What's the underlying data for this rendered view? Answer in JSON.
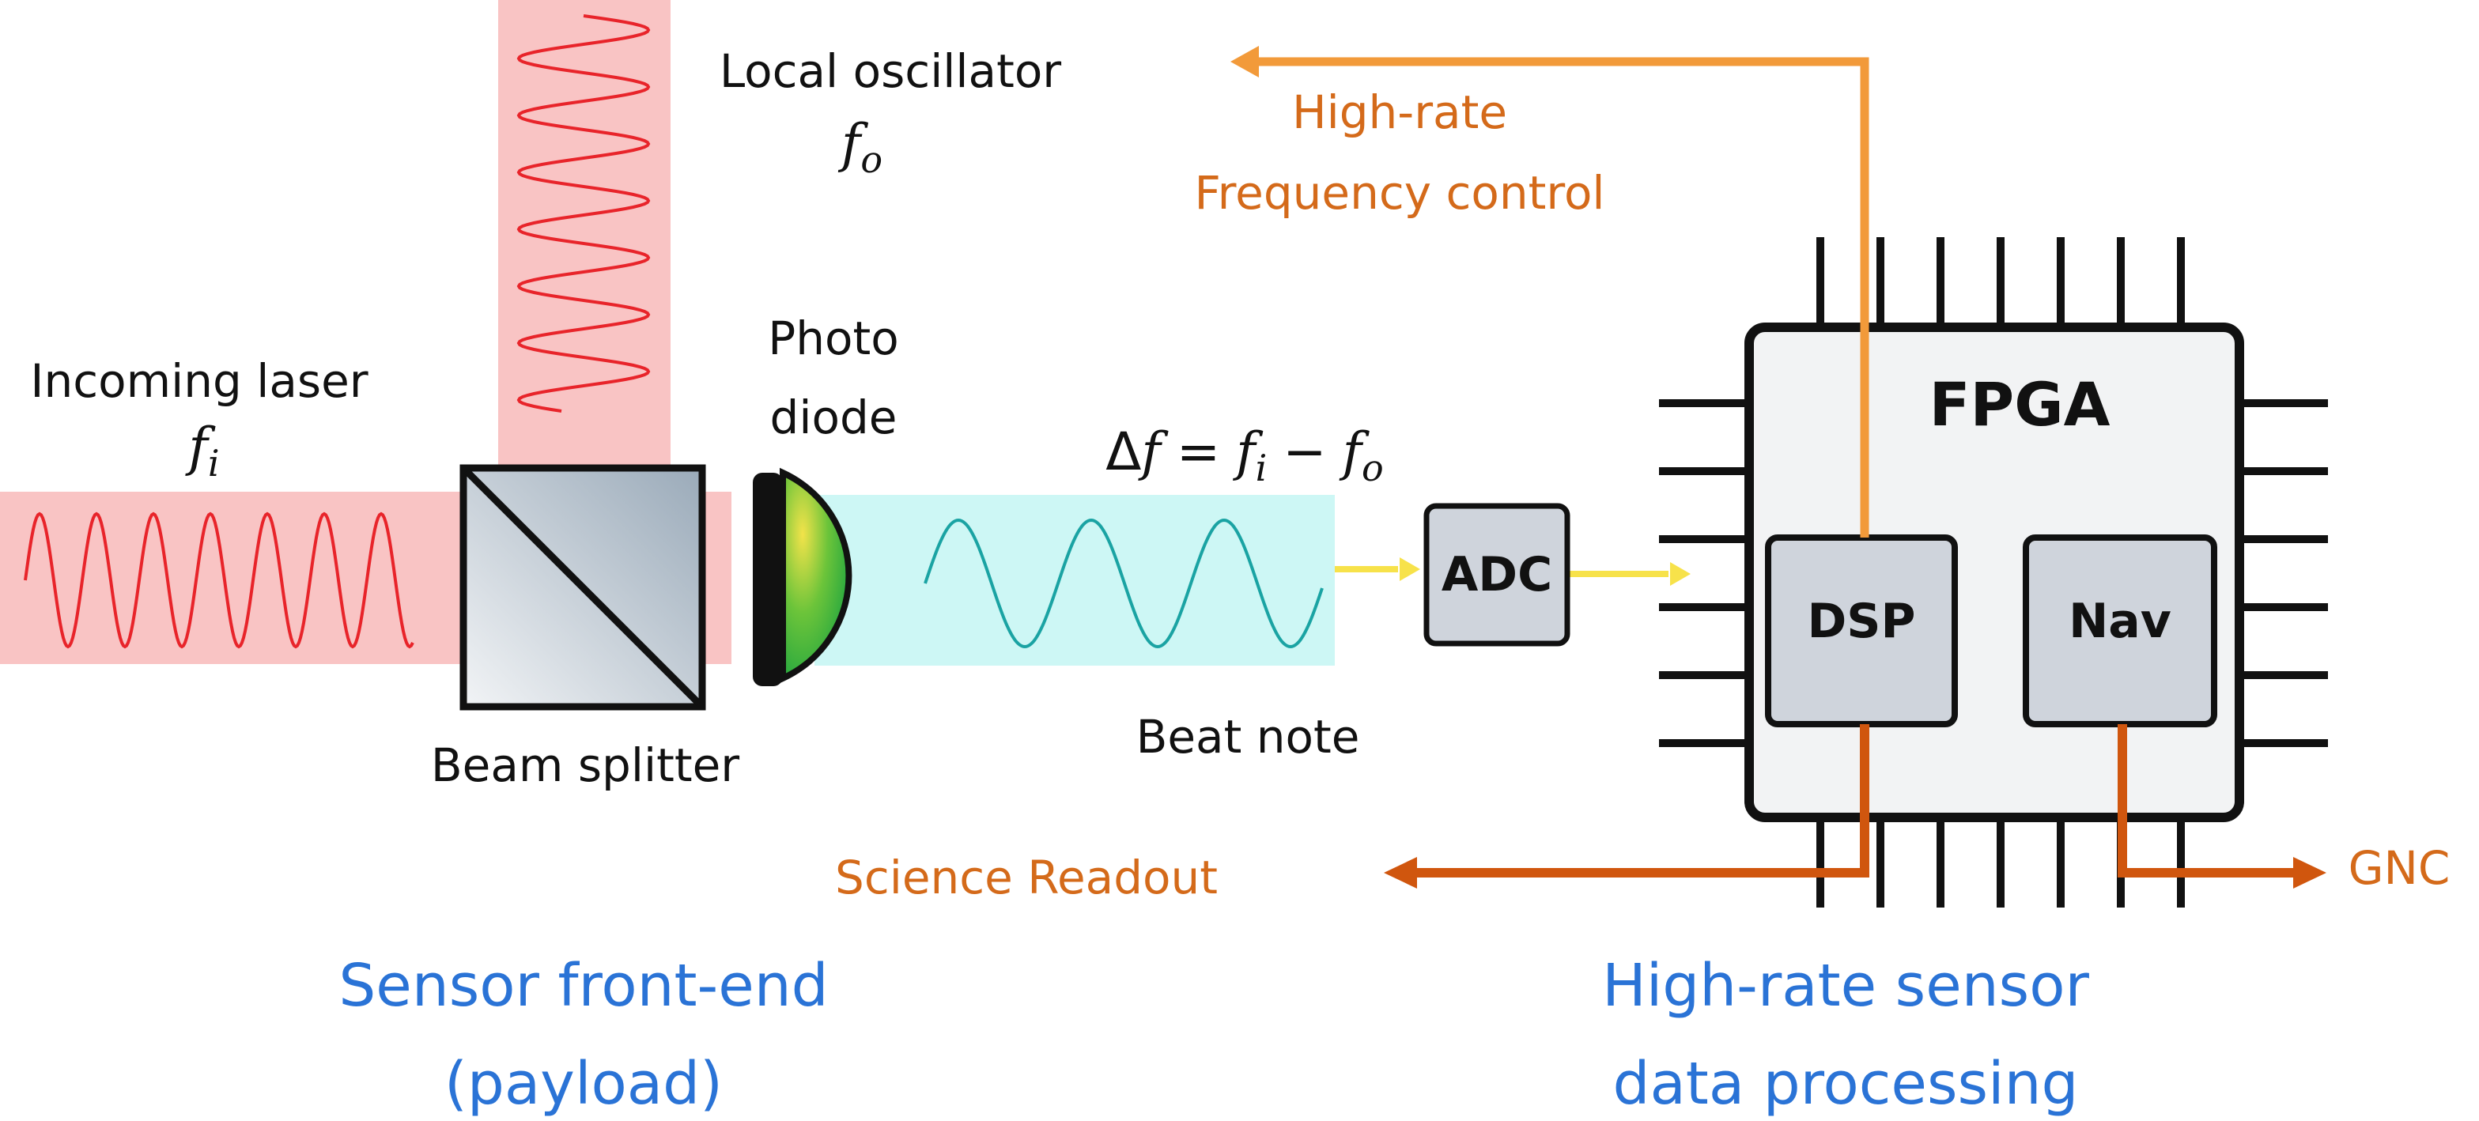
{
  "labels": {
    "incoming_laser": "Incoming laser",
    "incoming_freq": "f",
    "incoming_freq_sub": "i",
    "local_oscillator": "Local oscillator",
    "lo_freq": "f",
    "lo_freq_sub": "o",
    "photo": "Photo",
    "diode": "diode",
    "beam_splitter": "Beam splitter",
    "beat_note": "Beat note",
    "delta_eq": {
      "delta": "Δ",
      "f": "f",
      "eq": "=",
      "fi": "f",
      "fi_sub": "i",
      "minus": "−",
      "fo": "f",
      "fo_sub": "o"
    },
    "adc": "ADC",
    "fpga": "FPGA",
    "dsp": "DSP",
    "nav": "Nav",
    "high_rate": "High-rate",
    "frequency_control": "Frequency control",
    "science_readout": "Science Readout",
    "gnc": "GNC",
    "sensor_frontend_1": "Sensor front-end",
    "sensor_frontend_2": "(payload)",
    "processing_1": "High-rate sensor",
    "processing_2": "data processing"
  },
  "colors": {
    "laser_band": "#f9c4c4",
    "wave_red": "#e8242a",
    "beat_band": "#cdf7f5",
    "wave_teal": "#1aa3a3",
    "signal_yellow": "#f7e24a",
    "orange_light": "#f29a3a",
    "orange_dark": "#d0560e",
    "label_orange": "#d46a1a",
    "blue_text": "#2a73d6",
    "chip_fill": "#f2f3f4",
    "block_fill": "#cfd4dc"
  }
}
